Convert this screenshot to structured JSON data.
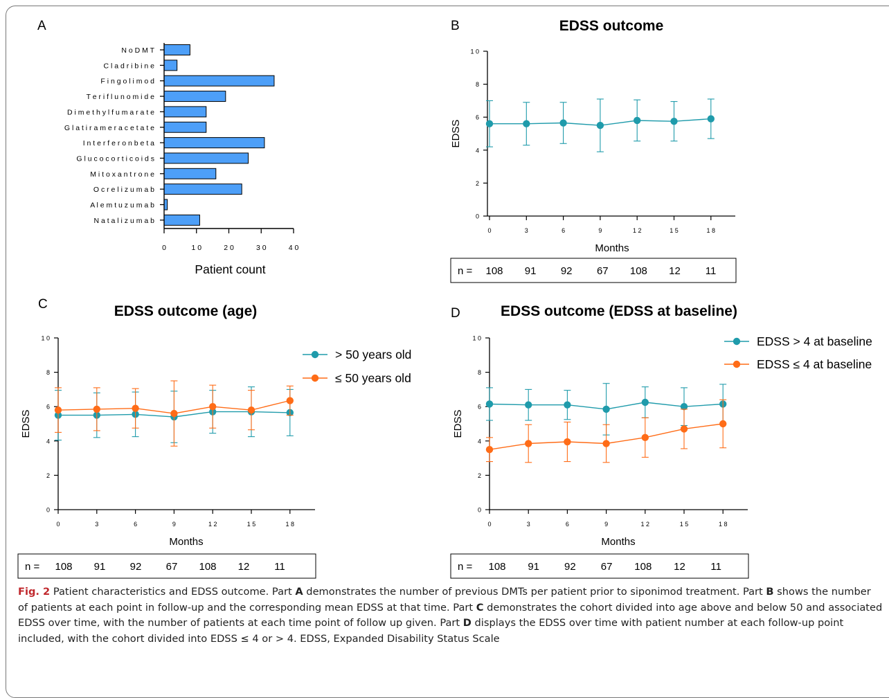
{
  "chart_data": [
    {
      "panel": "A",
      "type": "bar",
      "orientation": "horizontal",
      "title": "",
      "xlabel": "Patient count",
      "ylabel": "",
      "xlim": [
        0,
        40
      ],
      "xticks": [
        0,
        10,
        20,
        30,
        40
      ],
      "categories": [
        "No DMT",
        "Cladribine",
        "Fingolimod",
        "Teriflunomide",
        "Dimethyl fumarate",
        "Glatiramer acetate",
        "Interferon beta",
        "Glucocorticoids",
        "Mitoxantrone",
        "Ocrelizumab",
        "Alemtuzumab",
        "Natalizumab"
      ],
      "category_labels": [
        "N o  D M T",
        "C l a d r i b i n e",
        "F i n g o l i m  o d",
        "T e r i f l u n o m  i d e",
        "D i m  e t h y l  f u m  a r a t e",
        "G l a t i r a m  e r  a c e t a t e",
        "I n t e r f e r o n   b e t a",
        "G l u c o c o r t i c o i d s",
        "M  i t o x a n t r o n e",
        "O c r e l i z u m  a b",
        "A l e m  t u z u m  a b",
        "N a t a l i z u m  a b"
      ],
      "values": [
        8,
        4,
        34,
        19,
        13,
        13,
        31,
        26,
        16,
        24,
        1,
        11
      ],
      "bar_color": "#4d9ff8"
    },
    {
      "panel": "B",
      "type": "line",
      "title": "EDSS outcome",
      "xlabel": "Months",
      "ylabel": "EDSS",
      "x": [
        0,
        3,
        6,
        9,
        12,
        15,
        18
      ],
      "xtick_labels": [
        "0",
        "3",
        "6",
        "9",
        "1 2",
        "1 5",
        "1 8"
      ],
      "ylim": [
        0,
        10
      ],
      "yticks": [
        0,
        2,
        4,
        6,
        8,
        10
      ],
      "ytick_labels": [
        "0",
        "2",
        "4",
        "6",
        "8",
        "1 0"
      ],
      "series": [
        {
          "values": [
            5.6,
            5.6,
            5.65,
            5.5,
            5.8,
            5.75,
            5.9
          ],
          "err": [
            1.4,
            1.3,
            1.25,
            1.6,
            1.25,
            1.2,
            1.2
          ],
          "color": "#1f9bab"
        }
      ],
      "n_label": "n =",
      "n_values": [
        "108",
        "91",
        "92",
        "67",
        "108",
        "12",
        "11"
      ]
    },
    {
      "panel": "C",
      "type": "line",
      "title": "EDSS outcome (age)",
      "xlabel": "Months",
      "ylabel": "EDSS",
      "x": [
        0,
        3,
        6,
        9,
        12,
        15,
        18
      ],
      "xtick_labels": [
        "0",
        "3",
        "6",
        "9",
        "1 2",
        "1 5",
        "1 8"
      ],
      "ylim": [
        0,
        10
      ],
      "yticks": [
        0,
        2,
        4,
        6,
        8,
        10
      ],
      "ytick_labels": [
        "0",
        "2",
        "4",
        "6",
        "8",
        "1 0"
      ],
      "legend_position": "right",
      "series": [
        {
          "name": "> 50 years old",
          "values": [
            5.5,
            5.5,
            5.55,
            5.4,
            5.7,
            5.7,
            5.65
          ],
          "err": [
            1.45,
            1.3,
            1.3,
            1.5,
            1.25,
            1.45,
            1.35
          ],
          "color": "#1f9bab"
        },
        {
          "name": "≤ 50 years old",
          "values": [
            5.8,
            5.85,
            5.9,
            5.6,
            6.0,
            5.8,
            6.35
          ],
          "err": [
            1.3,
            1.25,
            1.15,
            1.9,
            1.25,
            1.15,
            0.85
          ],
          "color": "#ff6c17"
        }
      ],
      "n_label": "n =",
      "n_values": [
        "108",
        "91",
        "92",
        "67",
        "108",
        "12",
        "11"
      ]
    },
    {
      "panel": "D",
      "type": "line",
      "title": "EDSS outcome (EDSS at baseline)",
      "xlabel": "Months",
      "ylabel": "EDSS",
      "x": [
        0,
        3,
        6,
        9,
        12,
        15,
        18
      ],
      "xtick_labels": [
        "0",
        "3",
        "6",
        "9",
        "1 2",
        "1 5",
        "1 8"
      ],
      "ylim": [
        0,
        10
      ],
      "yticks": [
        0,
        2,
        4,
        6,
        8,
        10
      ],
      "ytick_labels": [
        "0",
        "2",
        "4",
        "6",
        "8",
        "1 0"
      ],
      "legend_position": "top-right",
      "series": [
        {
          "name": "EDSS > 4 at baseline",
          "values": [
            6.15,
            6.1,
            6.1,
            5.85,
            6.25,
            6.0,
            6.15
          ],
          "err": [
            0.95,
            0.9,
            0.85,
            1.5,
            0.9,
            1.1,
            1.15
          ],
          "color": "#1f9bab"
        },
        {
          "name": "EDSS ≤ 4 at baseline",
          "values": [
            3.5,
            3.85,
            3.95,
            3.85,
            4.2,
            4.7,
            5.0
          ],
          "err": [
            0.7,
            1.1,
            1.15,
            1.1,
            1.15,
            1.15,
            1.4
          ],
          "color": "#ff6c17"
        }
      ],
      "n_label": "n =",
      "n_values": [
        "108",
        "91",
        "92",
        "67",
        "108",
        "12",
        "11"
      ]
    }
  ],
  "caption": {
    "fig_label": "Fig. 2",
    "segments": [
      {
        "t": "  Patient characteristics and EDSS outcome. Part ",
        "b": false
      },
      {
        "t": "A",
        "b": true
      },
      {
        "t": " demonstrates the number of previous DMTs per patient prior to siponimod treatment. Part ",
        "b": false
      },
      {
        "t": "B",
        "b": true
      },
      {
        "t": " shows the number of patients at each point in follow-up and the corresponding mean EDSS at that time. Part ",
        "b": false
      },
      {
        "t": "C",
        "b": true
      },
      {
        "t": " demonstrates the cohort divided into age above and below 50 and associated EDSS over time, with the number of patients at each time point of follow up given. Part ",
        "b": false
      },
      {
        "t": "D",
        "b": true
      },
      {
        "t": " displays the EDSS over time with patient number at each follow-up point included, with the cohort divided into EDSS ≤ 4 or > 4. EDSS, Expanded Disability Status Scale",
        "b": false
      }
    ]
  }
}
